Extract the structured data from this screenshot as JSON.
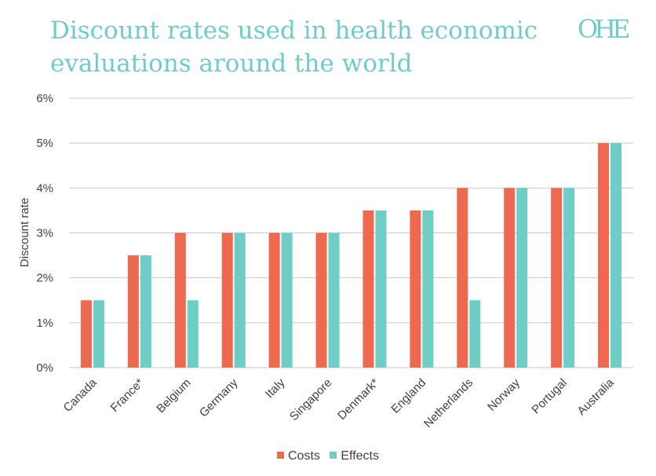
{
  "header": {
    "title": "Discount rates used in health economic evaluations around the world",
    "logo_text": "OHE"
  },
  "colors": {
    "costs": "#ed6a50",
    "effects": "#6ecdc4",
    "title": "#6ecdc4",
    "grid": "#c8c8c8",
    "text": "#404040"
  },
  "chart_data": {
    "type": "bar",
    "title": "Discount rates used in health economic evaluations around the world",
    "xlabel": "",
    "ylabel": "Discount rate",
    "ylim": [
      0,
      6
    ],
    "yticks": [
      "0%",
      "1%",
      "2%",
      "3%",
      "4%",
      "5%",
      "6%"
    ],
    "grid": true,
    "legend_position": "bottom",
    "categories": [
      "Canada",
      "France*",
      "Belgium",
      "Germany",
      "Italy",
      "Singapore",
      "Denmark*",
      "England",
      "Netherlands",
      "Norway",
      "Portugal",
      "Australia"
    ],
    "series": [
      {
        "name": "Costs",
        "color": "#ed6a50",
        "values": [
          1.5,
          2.5,
          3,
          3,
          3,
          3,
          3.5,
          3.5,
          4,
          4,
          4,
          5
        ]
      },
      {
        "name": "Effects",
        "color": "#6ecdc4",
        "values": [
          1.5,
          2.5,
          1.5,
          3,
          3,
          3,
          3.5,
          3.5,
          1.5,
          4,
          4,
          5
        ]
      }
    ]
  }
}
